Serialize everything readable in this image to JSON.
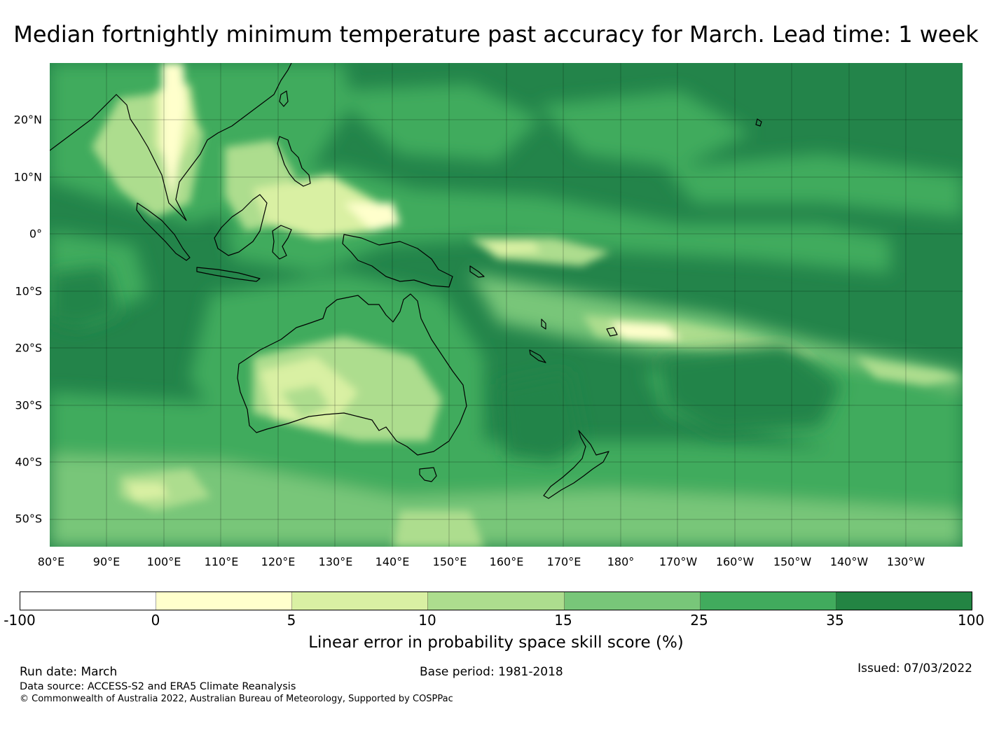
{
  "title": "Median fortnightly minimum temperature past accuracy for March. Lead time: 1 week",
  "map": {
    "lat_labels": [
      "20°N",
      "10°N",
      "0°",
      "10°S",
      "20°S",
      "30°S",
      "40°S",
      "50°S"
    ],
    "lon_labels": [
      "80°E",
      "90°E",
      "100°E",
      "110°E",
      "120°E",
      "130°E",
      "140°E",
      "150°E",
      "160°E",
      "170°E",
      "180°",
      "170°W",
      "160°W",
      "150°W",
      "140°W",
      "130°W"
    ],
    "dominant_fill": "#23844a",
    "gridlines": true
  },
  "colorbar": {
    "ticks": [
      "-100",
      "0",
      "5",
      "10",
      "15",
      "25",
      "35",
      "100"
    ],
    "colors": [
      "#ffffff",
      "#ffffcc",
      "#d9f0a3",
      "#addd8e",
      "#78c679",
      "#41ab5d",
      "#238443"
    ],
    "label": "Linear error in probability space skill score (%)"
  },
  "footer": {
    "run_date": "Run date: March",
    "base_period": "Base period: 1981-2018",
    "issued": "Issued: 07/03/2022",
    "data_source": "Data source: ACCESS-S2 and ERA5 Climate Reanalysis",
    "copyright": "© Commonwealth of Australia 2022, Australian Bureau of Meteorology, Supported by COSPPac"
  }
}
